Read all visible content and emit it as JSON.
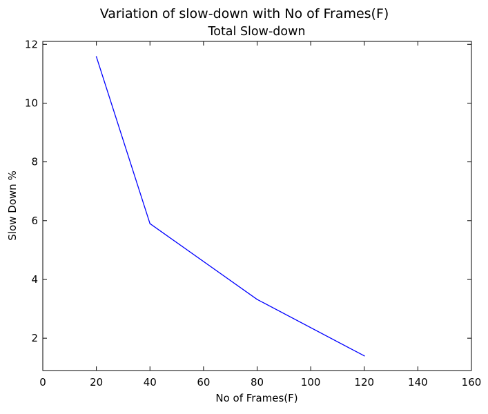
{
  "figure": {
    "suptitle": "Variation of slow-down with No of Frames(F)"
  },
  "chart_data": {
    "type": "line",
    "title": "Total Slow-down",
    "xlabel": "No of Frames(F)",
    "ylabel": "Slow Down %",
    "xlim": [
      0,
      160
    ],
    "ylim": [
      0.9,
      12.1
    ],
    "xticks": [
      0,
      20,
      40,
      60,
      80,
      100,
      120,
      140,
      160
    ],
    "yticks": [
      2,
      4,
      6,
      8,
      10,
      12
    ],
    "grid": false,
    "legend": "none",
    "series": [
      {
        "color": "#0000ff",
        "x": [
          20,
          40,
          80,
          120
        ],
        "y": [
          11.58,
          5.9,
          3.32,
          1.4
        ]
      }
    ]
  }
}
